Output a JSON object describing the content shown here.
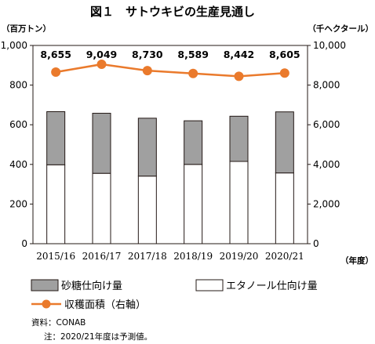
{
  "chart_data": {
    "type": "bar",
    "title": "図１　サトウキビの生産見通し",
    "left_unit": "（百万トン）",
    "right_unit": "（千ヘクタール）",
    "x_unit": "（年度）",
    "categories": [
      "2015/16",
      "2016/17",
      "2017/18",
      "2018/19",
      "2019/20",
      "2020/21"
    ],
    "left_axis": {
      "ylim": [
        0,
        1000
      ],
      "ticks": [
        "0",
        "200",
        "400",
        "600",
        "800",
        "1,000"
      ]
    },
    "right_axis": {
      "ylim": [
        0,
        10000
      ],
      "ticks": [
        "0",
        "2,000",
        "4,000",
        "6,000",
        "8,000",
        "10,000"
      ]
    },
    "series": [
      {
        "name": "砂糖仕向け量",
        "type": "bar",
        "stack": "bottom-up-2",
        "axis": "left",
        "color": "#a0a0a0",
        "values": [
          268,
          303,
          292,
          220,
          228,
          308
        ]
      },
      {
        "name": "エタノール仕向け量",
        "type": "bar",
        "stack": "bottom-up-1",
        "axis": "left",
        "color": "#ffffff",
        "values": [
          398,
          355,
          341,
          400,
          415,
          357
        ]
      },
      {
        "name": "収穫面積（右軸）",
        "type": "line",
        "axis": "right",
        "color": "#ea7a2c",
        "values": [
          8655,
          9049,
          8730,
          8589,
          8442,
          8605
        ],
        "labels": [
          "8,655",
          "9,049",
          "8,730",
          "8,589",
          "8,442",
          "8,605"
        ]
      }
    ],
    "grid": false,
    "legend_position": "bottom"
  },
  "notes": {
    "source": "資料：CONAB",
    "note": "注：2020/21年度は予測値。"
  }
}
